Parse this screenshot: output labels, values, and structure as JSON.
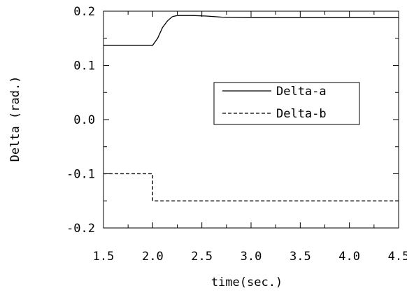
{
  "chart_data": {
    "type": "line",
    "xlabel": "time(sec.)",
    "ylabel": "Delta (rad.)",
    "xlim": [
      1.5,
      4.5
    ],
    "ylim": [
      -0.2,
      0.2
    ],
    "x_ticks": [
      "1.5",
      "2.0",
      "2.5",
      "3.0",
      "3.5",
      "4.0",
      "4.5"
    ],
    "y_ticks": [
      "-0.2",
      "-0.1",
      "0.0",
      "0.1",
      "0.2"
    ],
    "x_tick_values": [
      1.5,
      2.0,
      2.5,
      3.0,
      3.5,
      4.0,
      4.5
    ],
    "y_tick_values": [
      -0.2,
      -0.1,
      0.0,
      0.1,
      0.2
    ],
    "grid": false,
    "legend_position": "right",
    "series": [
      {
        "name": "Delta-a",
        "style": "solid",
        "color": "#000000",
        "x": [
          1.5,
          2.0,
          2.05,
          2.1,
          2.15,
          2.2,
          2.25,
          2.4,
          2.55,
          2.7,
          3.0,
          3.5,
          4.0,
          4.5
        ],
        "y": [
          0.137,
          0.137,
          0.15,
          0.17,
          0.182,
          0.19,
          0.192,
          0.192,
          0.191,
          0.189,
          0.188,
          0.188,
          0.188,
          0.188
        ]
      },
      {
        "name": "Delta-b",
        "style": "dashed",
        "color": "#000000",
        "x": [
          1.5,
          2.0,
          2.0,
          4.5
        ],
        "y": [
          -0.1,
          -0.1,
          -0.15,
          -0.15
        ]
      }
    ]
  }
}
